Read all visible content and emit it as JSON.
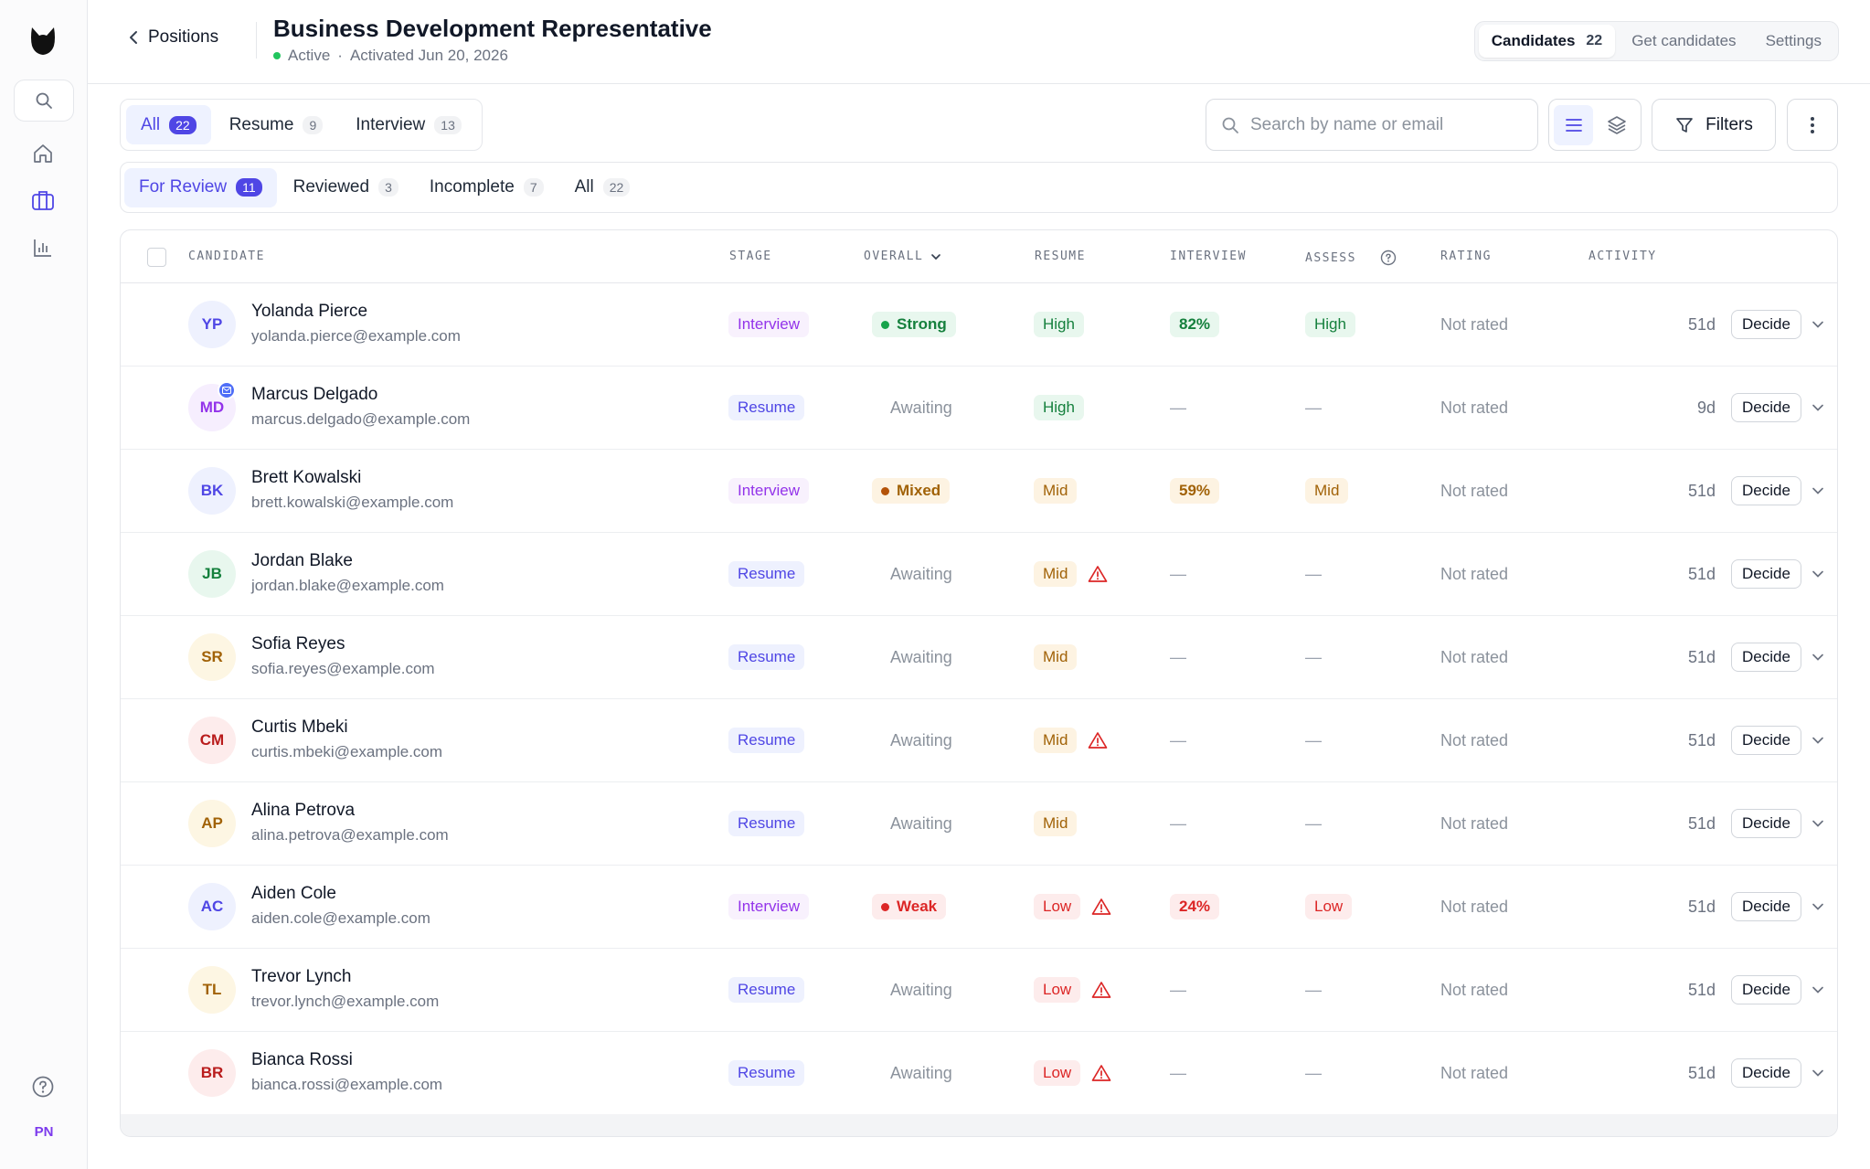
{
  "header": {
    "back_label": "Positions",
    "title": "Business Development Representative",
    "status": "Active",
    "separator": "·",
    "activated": "Activated Jun 20, 2026",
    "nav": [
      {
        "label": "Candidates",
        "count": "22"
      },
      {
        "label": "Get candidates",
        "count": ""
      },
      {
        "label": "Settings",
        "count": ""
      }
    ]
  },
  "sidebar": {
    "user_initials": "PN"
  },
  "stage_tabs": [
    {
      "label": "All",
      "count": "22"
    },
    {
      "label": "Resume",
      "count": "9"
    },
    {
      "label": "Interview",
      "count": "13"
    }
  ],
  "review_tabs": [
    {
      "label": "For Review",
      "count": "11"
    },
    {
      "label": "Reviewed",
      "count": "3"
    },
    {
      "label": "Incomplete",
      "count": "7"
    },
    {
      "label": "All",
      "count": "22"
    }
  ],
  "search": {
    "placeholder": "Search by name or email",
    "value": ""
  },
  "filters_label": "Filters",
  "table": {
    "headers": {
      "candidate": "CANDIDATE",
      "stage": "STAGE",
      "overall": "OVERALL",
      "resume": "RESUME",
      "interview": "INTERVIEW",
      "assess": "ASSESS",
      "rating": "RATING",
      "activity": "ACTIVITY"
    },
    "decide_label": "Decide",
    "rows": [
      {
        "initials": "YP",
        "name": "Yolanda Pierce",
        "email": "yolanda.pierce@example.com",
        "stage": "Interview",
        "overall": "Strong",
        "resume": "High",
        "interview": "82%",
        "assess": "High",
        "rating": "Not rated",
        "activity": "51d"
      },
      {
        "initials": "MD",
        "name": "Marcus Delgado",
        "email": "marcus.delgado@example.com",
        "stage": "Resume",
        "overall": "Awaiting",
        "resume": "High",
        "interview": "—",
        "assess": "—",
        "rating": "Not rated",
        "activity": "9d"
      },
      {
        "initials": "BK",
        "name": "Brett Kowalski",
        "email": "brett.kowalski@example.com",
        "stage": "Interview",
        "overall": "Mixed",
        "resume": "Mid",
        "interview": "59%",
        "assess": "Mid",
        "rating": "Not rated",
        "activity": "51d"
      },
      {
        "initials": "JB",
        "name": "Jordan Blake",
        "email": "jordan.blake@example.com",
        "stage": "Resume",
        "overall": "Awaiting",
        "resume": "Mid",
        "interview": "—",
        "assess": "—",
        "rating": "Not rated",
        "activity": "51d"
      },
      {
        "initials": "SR",
        "name": "Sofia Reyes",
        "email": "sofia.reyes@example.com",
        "stage": "Resume",
        "overall": "Awaiting",
        "resume": "Mid",
        "interview": "—",
        "assess": "—",
        "rating": "Not rated",
        "activity": "51d"
      },
      {
        "initials": "CM",
        "name": "Curtis Mbeki",
        "email": "curtis.mbeki@example.com",
        "stage": "Resume",
        "overall": "Awaiting",
        "resume": "Mid",
        "interview": "—",
        "assess": "—",
        "rating": "Not rated",
        "activity": "51d"
      },
      {
        "initials": "AP",
        "name": "Alina Petrova",
        "email": "alina.petrova@example.com",
        "stage": "Resume",
        "overall": "Awaiting",
        "resume": "Mid",
        "interview": "—",
        "assess": "—",
        "rating": "Not rated",
        "activity": "51d"
      },
      {
        "initials": "AC",
        "name": "Aiden Cole",
        "email": "aiden.cole@example.com",
        "stage": "Interview",
        "overall": "Weak",
        "resume": "Low",
        "interview": "24%",
        "assess": "Low",
        "rating": "Not rated",
        "activity": "51d"
      },
      {
        "initials": "TL",
        "name": "Trevor Lynch",
        "email": "trevor.lynch@example.com",
        "stage": "Resume",
        "overall": "Awaiting",
        "resume": "Low",
        "interview": "—",
        "assess": "—",
        "rating": "Not rated",
        "activity": "51d"
      },
      {
        "initials": "BR",
        "name": "Bianca Rossi",
        "email": "bianca.rossi@example.com",
        "stage": "Resume",
        "overall": "Awaiting",
        "resume": "Low",
        "interview": "—",
        "assess": "—",
        "rating": "Not rated",
        "activity": "51d"
      }
    ]
  }
}
